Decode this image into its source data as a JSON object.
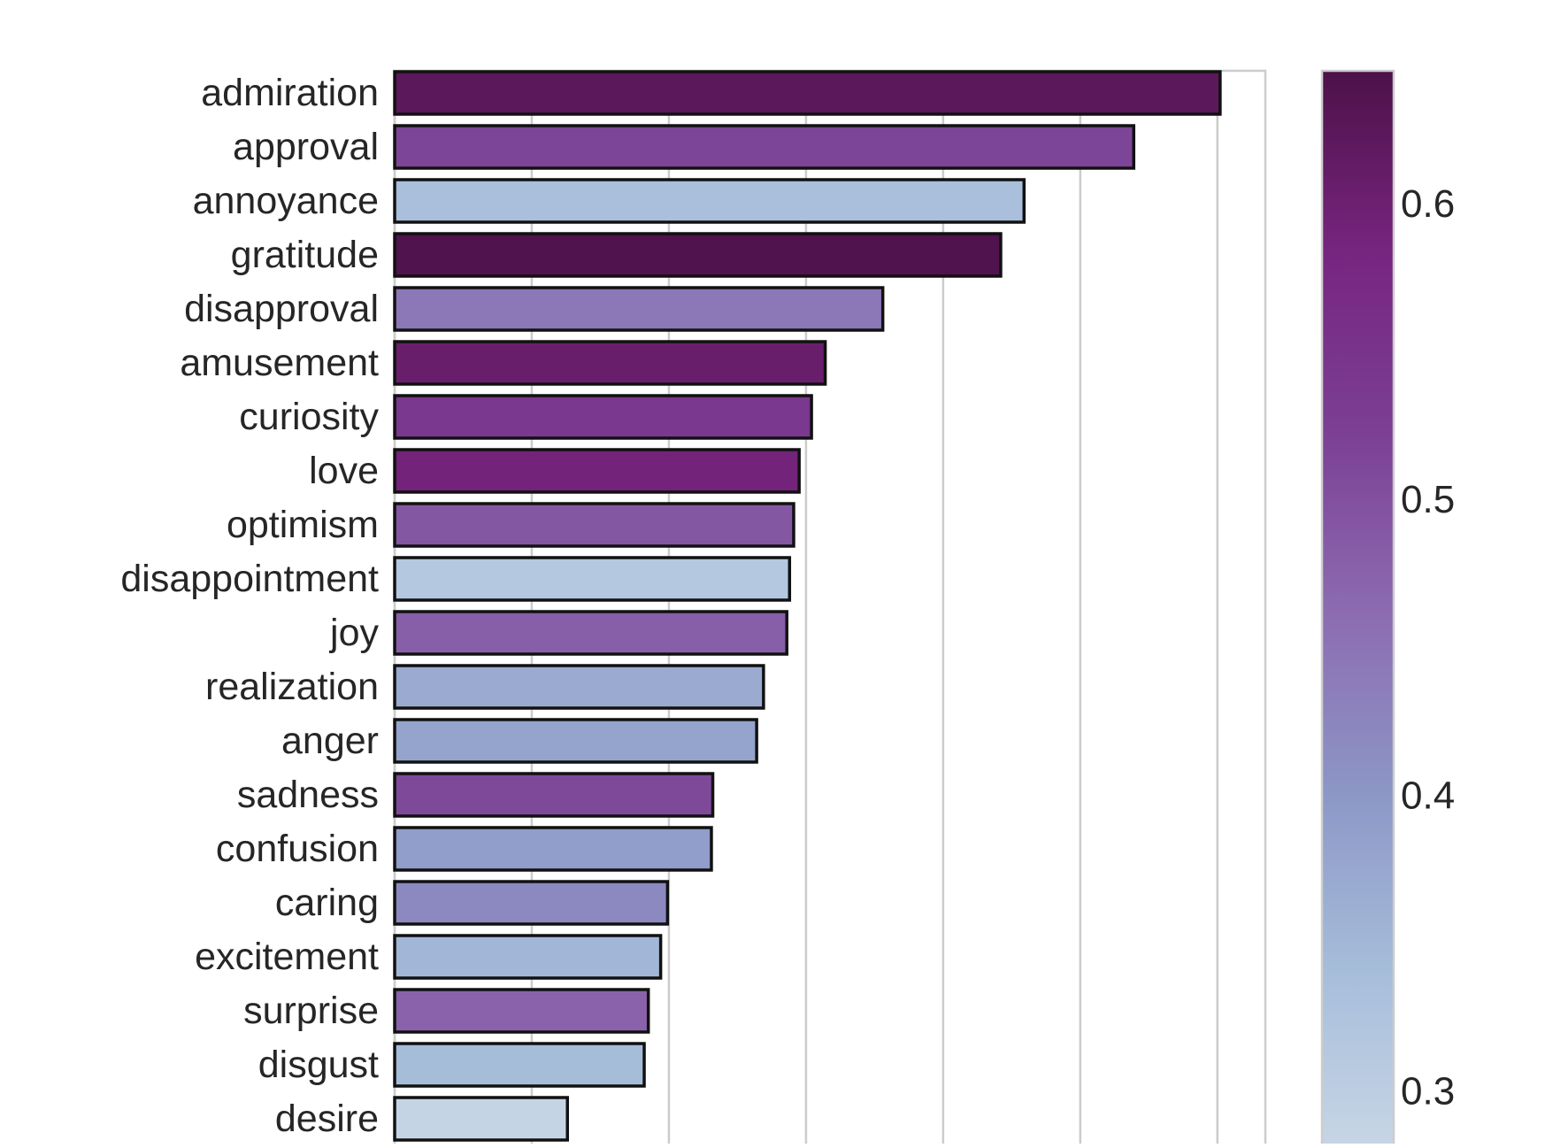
{
  "chart_data": {
    "type": "bar",
    "orientation": "horizontal",
    "categories": [
      "admiration",
      "approval",
      "annoyance",
      "gratitude",
      "disapproval",
      "amusement",
      "curiosity",
      "love",
      "optimism",
      "disappointment",
      "joy",
      "realization",
      "anger",
      "sadness",
      "confusion",
      "caring",
      "excitement",
      "surprise",
      "disgust",
      "desire"
    ],
    "values": [
      6.02,
      5.39,
      4.59,
      4.42,
      3.56,
      3.14,
      3.04,
      2.95,
      2.91,
      2.88,
      2.86,
      2.69,
      2.64,
      2.32,
      2.31,
      1.99,
      1.94,
      1.85,
      1.82,
      1.26
    ],
    "color_values": [
      0.625,
      0.515,
      0.335,
      0.64,
      0.445,
      0.605,
      0.54,
      0.59,
      0.49,
      0.315,
      0.48,
      0.37,
      0.38,
      0.51,
      0.39,
      0.42,
      0.35,
      0.475,
      0.34,
      0.285
    ],
    "xlim": [
      0,
      6.35
    ],
    "xticks": [
      0,
      1,
      2,
      3,
      4,
      5,
      6
    ],
    "grid": true,
    "title": "",
    "xlabel": "",
    "ylabel": "",
    "colorbar": {
      "range": [
        0.28,
        0.645
      ],
      "ticks": [
        "0.3",
        "0.4",
        "0.5",
        "0.6"
      ],
      "tick_values": [
        0.3,
        0.4,
        0.5,
        0.6
      ],
      "colormap": "BuPu",
      "stops": [
        "#c8d6e6",
        "#a6bdda",
        "#8c96c6",
        "#8c6bb1",
        "#7b3f93",
        "#77257f",
        "#4d1148"
      ]
    }
  }
}
